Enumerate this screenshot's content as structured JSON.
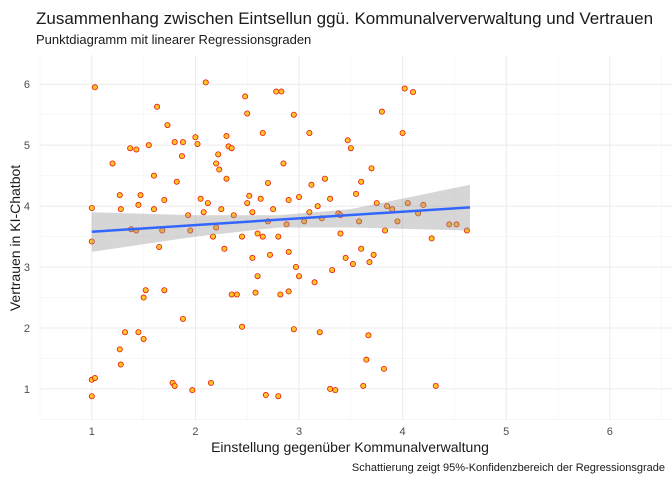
{
  "chart_data": {
    "type": "scatter",
    "title": "Zusammenhang zwischen Eintsellun ggü. Kommunalververwaltung und Vertrauen",
    "subtitle": "Punktdiagramm mit linearer Regressionsgraden",
    "x_label": "Einstellung gegenüber Kommunalverwaltung",
    "y_label": "Vertrauen in KI-Chatbot",
    "caption": "Schattierung zeigt 95%-Konfidenzbereich der Regressionsgrade",
    "xlim": [
      0.5,
      6.6
    ],
    "ylim": [
      0.49,
      6.48
    ],
    "xticks": [
      1,
      2,
      3,
      4,
      5,
      6
    ],
    "yticks": [
      1,
      2,
      3,
      4,
      5,
      6
    ],
    "grid": true,
    "color": "#ffc425",
    "edgecolor": "#e8170b",
    "x": [
      1.0,
      1.03,
      1.0,
      1.03,
      1.0,
      1.0,
      1.2,
      1.27,
      1.28,
      1.27,
      1.28,
      1.32,
      1.37,
      1.43,
      1.38,
      1.43,
      1.45,
      1.47,
      1.45,
      1.5,
      1.5,
      1.52,
      1.55,
      1.6,
      1.63,
      1.65,
      1.68,
      1.7,
      1.7,
      1.73,
      1.78,
      1.8,
      1.8,
      1.82,
      1.87,
      1.88,
      1.88,
      1.93,
      1.95,
      1.97,
      2.0,
      2.02,
      2.05,
      2.08,
      2.1,
      2.12,
      2.15,
      2.17,
      2.2,
      2.22,
      2.23,
      2.25,
      2.28,
      2.3,
      2.32,
      2.35,
      2.35,
      2.37,
      2.4,
      2.45,
      2.48,
      2.5,
      2.52,
      2.55,
      2.58,
      2.6,
      2.63,
      2.65,
      2.68,
      2.7,
      2.72,
      2.75,
      2.78,
      2.8,
      2.82,
      2.83,
      2.85,
      2.88,
      2.9,
      2.95,
      2.95,
      2.97,
      3.0,
      3.05,
      3.1,
      3.12,
      3.15,
      3.18,
      3.2,
      3.22,
      3.25,
      3.3,
      3.32,
      3.35,
      3.38,
      3.4,
      3.45,
      3.47,
      3.5,
      3.52,
      3.55,
      3.58,
      3.6,
      3.65,
      3.67,
      3.68,
      3.7,
      3.72,
      3.75,
      3.8,
      3.82,
      3.83,
      3.85,
      3.9,
      3.95,
      4.0,
      4.02,
      4.05,
      4.1,
      4.15,
      4.2,
      4.28,
      4.32,
      4.45,
      4.52,
      4.62,
      3.62,
      2.6,
      2.9,
      3.3,
      3.0,
      2.45,
      2.55,
      2.65,
      2.7,
      3.4,
      3.1,
      2.2,
      2.9,
      2.8,
      3.6,
      2.3,
      1.6,
      2.5
    ],
    "y": [
      1.15,
      1.18,
      0.88,
      5.95,
      3.97,
      3.42,
      4.7,
      4.18,
      3.95,
      1.65,
      1.4,
      1.93,
      4.95,
      4.93,
      3.62,
      3.6,
      4.02,
      4.18,
      1.93,
      1.82,
      2.5,
      2.62,
      5.0,
      4.5,
      5.63,
      3.33,
      3.6,
      2.62,
      4.1,
      5.33,
      1.1,
      1.05,
      5.05,
      4.4,
      4.82,
      5.05,
      2.15,
      3.85,
      3.6,
      0.98,
      5.13,
      5.02,
      4.12,
      3.9,
      6.03,
      4.05,
      1.1,
      3.5,
      4.7,
      4.85,
      4.6,
      3.95,
      3.3,
      5.15,
      4.98,
      4.95,
      2.55,
      3.85,
      2.55,
      2.02,
      5.8,
      5.52,
      4.17,
      3.15,
      2.58,
      3.55,
      4.12,
      5.2,
      0.9,
      4.38,
      3.2,
      3.95,
      5.88,
      0.88,
      2.55,
      5.88,
      4.7,
      3.7,
      3.25,
      5.5,
      1.98,
      3.0,
      4.15,
      3.75,
      5.2,
      4.35,
      2.75,
      4.0,
      1.93,
      3.8,
      4.45,
      4.12,
      2.95,
      0.98,
      3.88,
      3.55,
      3.15,
      5.08,
      4.95,
      3.05,
      4.2,
      3.75,
      3.3,
      1.48,
      1.88,
      3.08,
      4.62,
      3.2,
      4.05,
      5.55,
      1.33,
      3.6,
      4.0,
      3.95,
      3.75,
      5.2,
      5.93,
      4.05,
      5.87,
      3.88,
      4.02,
      3.47,
      1.05,
      3.7,
      3.7,
      3.6,
      1.05,
      2.85,
      2.6,
      1.0,
      2.85,
      3.5,
      3.9,
      3.5,
      3.75,
      3.85,
      3.9,
      3.65,
      4.1,
      3.5,
      4.4,
      4.45,
      3.95,
      4.05
    ],
    "regression": {
      "color": "#3366ff",
      "x": [
        1.0,
        4.65
      ],
      "y": [
        3.58,
        3.98
      ]
    },
    "confidence_band": {
      "color": "#999999",
      "x": [
        1.0,
        2.0,
        2.8,
        3.5,
        4.65
      ],
      "lower": [
        3.25,
        3.5,
        3.65,
        3.65,
        3.6
      ],
      "upper": [
        3.9,
        3.85,
        3.85,
        3.95,
        4.35
      ]
    }
  }
}
